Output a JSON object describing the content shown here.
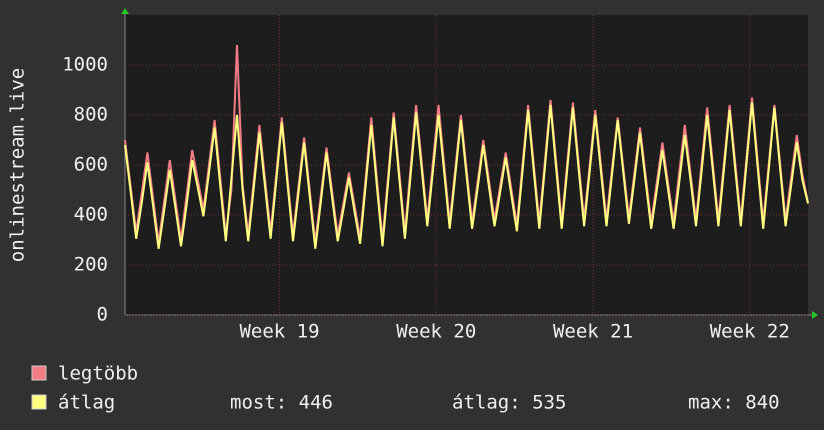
{
  "chart_data": {
    "type": "line",
    "y_label": "onlinestream.live",
    "x": [
      0,
      0.25,
      0.5,
      0.75,
      1,
      1.25,
      1.5,
      1.75,
      2,
      2.25,
      2.5,
      2.75,
      3,
      3.25,
      3.5,
      3.75,
      4,
      4.25,
      4.5,
      4.75,
      5,
      5.25,
      5.5,
      5.75,
      6,
      6.25,
      6.5,
      6.75,
      7,
      7.25,
      7.5,
      7.75,
      8,
      8.25,
      8.5,
      8.75,
      9,
      9.25,
      9.5,
      9.75,
      10,
      10.25,
      10.5,
      10.75,
      11,
      11.25,
      11.5,
      11.75,
      12,
      12.25,
      12.5,
      12.75,
      13,
      13.25,
      13.5,
      13.75,
      14,
      14.25,
      14.5,
      14.75,
      15,
      15.25,
      15.5,
      15.75,
      16,
      16.25,
      16.5,
      16.75,
      17,
      17.25,
      17.5,
      17.75,
      18,
      18.25,
      18.5,
      18.75,
      19,
      19.25,
      19.5,
      19.75,
      20,
      20.25,
      20.5,
      20.75,
      21,
      21.25,
      21.5,
      21.75,
      22,
      22.25,
      22.5,
      22.75,
      23,
      23.25,
      23.5,
      23.75,
      24,
      24.25,
      24.5,
      24.75,
      25,
      25.25,
      25.5,
      25.75,
      26,
      26.25,
      26.5,
      26.75,
      27,
      27.25,
      27.5,
      27.75,
      28,
      28.25,
      28.5,
      28.75,
      29,
      29.25,
      29.5,
      29.75,
      30,
      30.25,
      30.5
    ],
    "series": [
      {
        "name": "legtöbb",
        "color": "#f47c84",
        "values": [
          700,
          515,
          330,
          490,
          650,
          470,
          290,
          455,
          620,
          460,
          300,
          480,
          660,
          540,
          420,
          600,
          780,
          550,
          320,
          500,
          1080,
          520,
          320,
          540,
          760,
          545,
          330,
          560,
          790,
          555,
          320,
          515,
          710,
          500,
          290,
          480,
          670,
          495,
          320,
          445,
          570,
          440,
          310,
          550,
          790,
          545,
          300,
          555,
          810,
          570,
          330,
          585,
          840,
          610,
          380,
          610,
          840,
          605,
          370,
          585,
          800,
          585,
          370,
          535,
          700,
          540,
          380,
          515,
          650,
          505,
          360,
          600,
          840,
          605,
          370,
          615,
          860,
          615,
          370,
          610,
          850,
          615,
          380,
          600,
          820,
          600,
          380,
          590,
          790,
          590,
          390,
          570,
          750,
          560,
          370,
          530,
          690,
          530,
          370,
          570,
          760,
          570,
          380,
          605,
          830,
          605,
          380,
          610,
          840,
          610,
          380,
          625,
          870,
          620,
          370,
          605,
          840,
          610,
          380,
          550,
          720,
          560,
          450
        ]
      },
      {
        "name": "átlag",
        "color": "#ffff80",
        "values": [
          680,
          495,
          305,
          450,
          610,
          440,
          265,
          420,
          580,
          430,
          275,
          440,
          620,
          510,
          395,
          570,
          750,
          520,
          295,
          545,
          800,
          500,
          295,
          510,
          730,
          515,
          305,
          535,
          770,
          530,
          295,
          490,
          690,
          475,
          265,
          455,
          650,
          470,
          295,
          420,
          550,
          415,
          285,
          520,
          760,
          515,
          275,
          530,
          790,
          545,
          305,
          555,
          810,
          585,
          355,
          575,
          800,
          575,
          345,
          560,
          780,
          560,
          345,
          510,
          680,
          515,
          355,
          490,
          630,
          480,
          335,
          575,
          820,
          580,
          345,
          590,
          840,
          590,
          345,
          585,
          830,
          590,
          355,
          575,
          800,
          575,
          355,
          565,
          780,
          570,
          365,
          545,
          730,
          535,
          345,
          500,
          660,
          505,
          345,
          530,
          720,
          545,
          355,
          575,
          800,
          580,
          355,
          585,
          820,
          585,
          355,
          600,
          850,
          595,
          345,
          585,
          830,
          590,
          355,
          520,
          690,
          540,
          446
        ]
      }
    ],
    "xlim": [
      0,
      30.5
    ],
    "xticks": [
      {
        "value": 6.9,
        "label": "Week 19"
      },
      {
        "value": 13.9,
        "label": "Week 20"
      },
      {
        "value": 20.9,
        "label": "Week 21"
      },
      {
        "value": 27.9,
        "label": "Week 22"
      }
    ],
    "ylim": [
      0,
      1200
    ],
    "yticks": [
      0,
      200,
      400,
      600,
      800,
      1000
    ],
    "grid": true,
    "legend_stats": [
      "most: 446",
      "átlag: 535",
      "max: 840"
    ]
  }
}
